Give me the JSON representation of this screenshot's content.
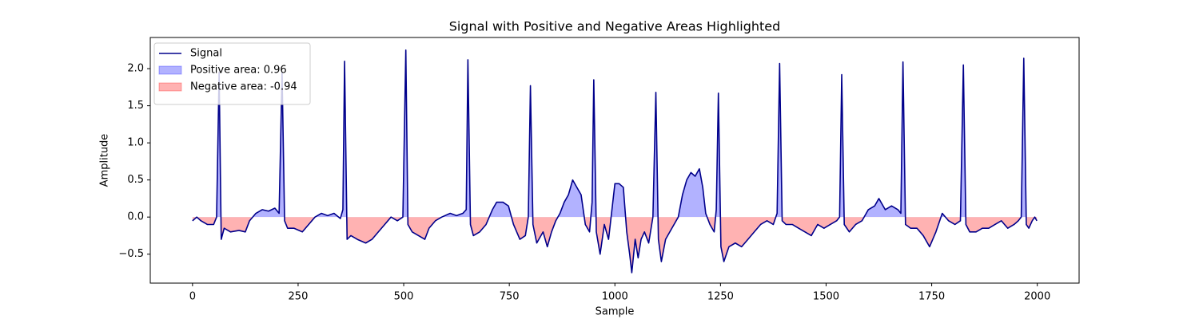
{
  "chart_data": {
    "type": "line",
    "title": "Signal with Positive and Negative Areas Highlighted",
    "xlabel": "Sample",
    "ylabel": "Amplitude",
    "xlim": [
      -100,
      2099
    ],
    "ylim": [
      -0.89,
      2.42
    ],
    "xticks": [
      0,
      250,
      500,
      750,
      1000,
      1250,
      1500,
      1750,
      2000
    ],
    "yticks": [
      {
        "value": -0.5,
        "label": "−0.5"
      },
      {
        "value": 0,
        "label": "0.0"
      },
      0.5,
      {
        "value": 1,
        "label": "1.0"
      },
      1.5,
      {
        "value": 2,
        "label": "2.0"
      }
    ],
    "grid": false,
    "legend": "upper left",
    "x": [
      0,
      10,
      20,
      35,
      50,
      57,
      63,
      68,
      75,
      90,
      110,
      125,
      135,
      150,
      165,
      180,
      195,
      205,
      212,
      218,
      225,
      240,
      260,
      275,
      290,
      305,
      320,
      335,
      350,
      356,
      360,
      366,
      375,
      390,
      410,
      425,
      440,
      455,
      470,
      485,
      498,
      505,
      510,
      520,
      535,
      550,
      560,
      575,
      590,
      610,
      625,
      640,
      648,
      652,
      658,
      665,
      680,
      695,
      710,
      720,
      735,
      748,
      760,
      775,
      788,
      795,
      800,
      806,
      815,
      830,
      840,
      850,
      860,
      870,
      880,
      890,
      900,
      910,
      920,
      930,
      940,
      946,
      950,
      956,
      965,
      975,
      985,
      995,
      1000,
      1010,
      1020,
      1028,
      1035,
      1040,
      1048,
      1055,
      1062,
      1070,
      1080,
      1090,
      1097,
      1103,
      1110,
      1120,
      1130,
      1140,
      1150,
      1160,
      1170,
      1180,
      1190,
      1200,
      1208,
      1215,
      1225,
      1235,
      1240,
      1245,
      1251,
      1258,
      1270,
      1285,
      1300,
      1315,
      1330,
      1345,
      1360,
      1375,
      1384,
      1390,
      1396,
      1405,
      1420,
      1435,
      1450,
      1465,
      1480,
      1495,
      1510,
      1525,
      1532,
      1537,
      1543,
      1555,
      1570,
      1585,
      1600,
      1615,
      1625,
      1640,
      1655,
      1670,
      1677,
      1682,
      1688,
      1700,
      1715,
      1730,
      1745,
      1760,
      1775,
      1790,
      1805,
      1818,
      1825,
      1831,
      1840,
      1855,
      1870,
      1885,
      1900,
      1915,
      1930,
      1945,
      1955,
      1962,
      1968,
      1974,
      1980,
      1988,
      1994,
      1999
    ],
    "series": [
      {
        "name": "Signal",
        "color": "#00008b",
        "values": [
          -0.05,
          0.0,
          -0.05,
          -0.1,
          -0.1,
          0.0,
          1.95,
          -0.3,
          -0.15,
          -0.2,
          -0.18,
          -0.2,
          -0.05,
          0.05,
          0.1,
          0.08,
          0.12,
          0.05,
          1.95,
          -0.05,
          -0.15,
          -0.15,
          -0.2,
          -0.1,
          0.0,
          0.05,
          0.02,
          0.05,
          -0.02,
          0.1,
          2.1,
          -0.3,
          -0.25,
          -0.3,
          -0.35,
          -0.3,
          -0.2,
          -0.1,
          0.0,
          -0.05,
          0.0,
          2.25,
          -0.1,
          -0.2,
          -0.25,
          -0.3,
          -0.15,
          -0.05,
          0.0,
          0.05,
          0.02,
          0.05,
          0.1,
          2.12,
          -0.1,
          -0.25,
          -0.2,
          -0.1,
          0.1,
          0.2,
          0.2,
          0.15,
          -0.1,
          -0.3,
          -0.25,
          0.0,
          1.77,
          -0.1,
          -0.35,
          -0.2,
          -0.4,
          -0.2,
          -0.05,
          0.05,
          0.2,
          0.3,
          0.5,
          0.4,
          0.3,
          -0.1,
          -0.2,
          0.2,
          1.85,
          -0.2,
          -0.5,
          -0.1,
          -0.3,
          0.2,
          0.45,
          0.45,
          0.4,
          -0.2,
          -0.5,
          -0.75,
          -0.3,
          -0.55,
          -0.3,
          -0.2,
          -0.35,
          0.0,
          1.68,
          -0.3,
          -0.6,
          -0.3,
          -0.2,
          -0.1,
          0.0,
          0.3,
          0.5,
          0.6,
          0.55,
          0.65,
          0.4,
          0.05,
          -0.1,
          -0.2,
          0.1,
          1.67,
          -0.4,
          -0.6,
          -0.4,
          -0.35,
          -0.4,
          -0.3,
          -0.2,
          -0.1,
          -0.05,
          -0.1,
          0.05,
          2.07,
          -0.05,
          -0.1,
          -0.1,
          -0.15,
          -0.2,
          -0.25,
          -0.1,
          -0.15,
          -0.1,
          -0.05,
          0.0,
          1.92,
          -0.1,
          -0.2,
          -0.1,
          -0.05,
          0.1,
          0.15,
          0.25,
          0.1,
          0.15,
          0.1,
          0.05,
          2.09,
          -0.1,
          -0.15,
          -0.15,
          -0.25,
          -0.4,
          -0.2,
          0.05,
          -0.05,
          -0.1,
          -0.05,
          2.05,
          -0.1,
          -0.2,
          -0.2,
          -0.15,
          -0.15,
          -0.1,
          -0.05,
          -0.15,
          -0.1,
          -0.05,
          0.0,
          2.14,
          -0.1,
          -0.15,
          -0.05,
          0.0,
          -0.05
        ]
      }
    ],
    "fills": [
      {
        "name": "Positive area: 0.96",
        "color": "#0000ff",
        "region": "above"
      },
      {
        "name": "Negative area: -0.94",
        "color": "#ff0000",
        "region": "below"
      }
    ]
  }
}
